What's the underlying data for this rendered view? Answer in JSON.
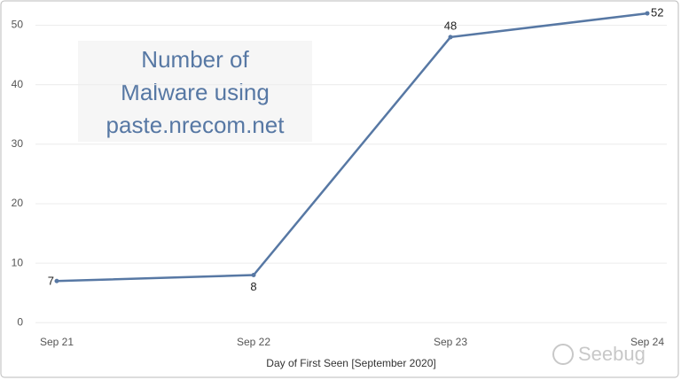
{
  "chart_data": {
    "type": "line",
    "title": [
      "Number of",
      "Malware using",
      "paste.nrecom.net"
    ],
    "categories": [
      "Sep 21",
      "Sep 22",
      "Sep 23",
      "Sep 24"
    ],
    "series": [
      {
        "name": "Number of Malware",
        "color": "#5778a4",
        "values": [
          7,
          8,
          48,
          52
        ]
      }
    ],
    "x_label": "Day of First Seen [September 2020]",
    "ylim": [
      -1.6,
      53.5
    ],
    "yticks": [
      0,
      10,
      20,
      30,
      40,
      50
    ],
    "grid": true,
    "watermark": "Seebug"
  }
}
